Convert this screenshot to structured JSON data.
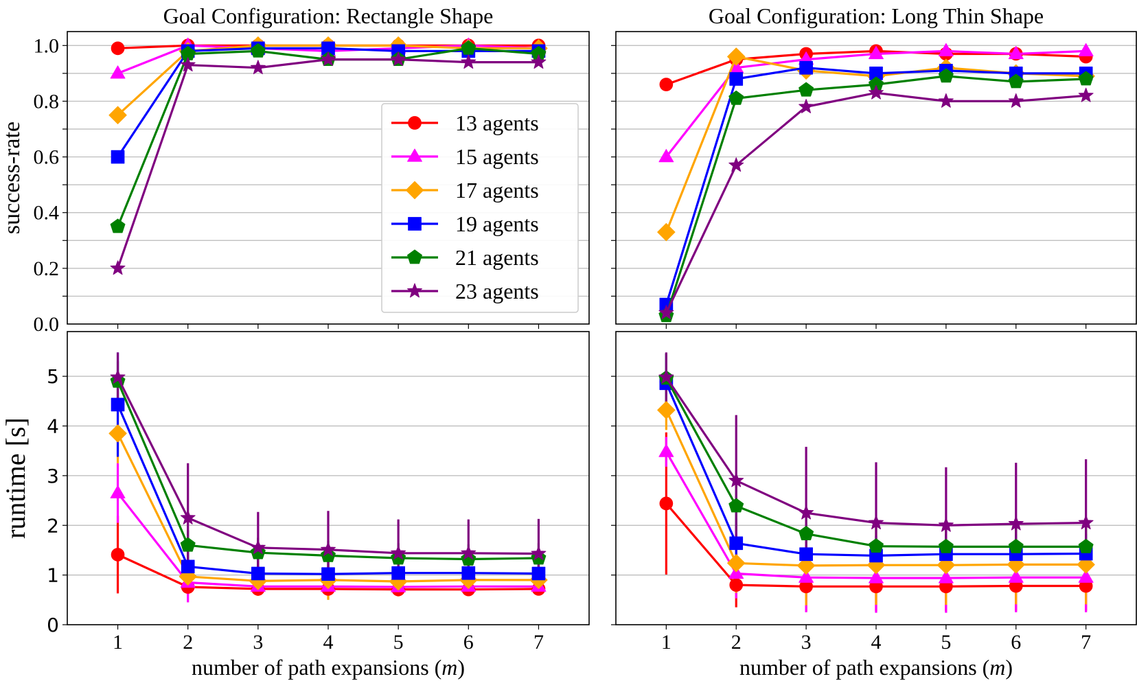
{
  "chart_data": {
    "type": "line",
    "x": [
      1,
      2,
      3,
      4,
      5,
      6,
      7
    ],
    "xticks": [
      "1",
      "2",
      "3",
      "4",
      "5",
      "6",
      "7"
    ],
    "xlabel_text": "number of path expansions (",
    "xlabel_var": "m",
    "xlabel_end": ")",
    "legend_labels": [
      "13 agents",
      "15 agents",
      "17 agents",
      "19 agents",
      "21 agents",
      "23 agents"
    ],
    "series_style": [
      {
        "color": "#ff0000",
        "marker": "circle"
      },
      {
        "color": "#ff00ff",
        "marker": "triangle"
      },
      {
        "color": "#ffa500",
        "marker": "diamond"
      },
      {
        "color": "#0000ff",
        "marker": "square"
      },
      {
        "color": "#008000",
        "marker": "pentagon"
      },
      {
        "color": "#800080",
        "marker": "star"
      }
    ],
    "success": {
      "ylabel": "success-rate",
      "ylim": [
        0,
        1.05
      ],
      "yticks": [
        "0.0",
        "0.2",
        "0.4",
        "0.6",
        "0.8",
        "1.0"
      ],
      "tick_values": [
        0,
        0.2,
        0.4,
        0.6,
        0.8,
        1.0
      ],
      "grid_values": [
        0.1,
        0.2,
        0.3,
        0.4,
        0.5,
        0.6,
        0.7,
        0.8,
        0.9,
        1.0
      ],
      "panels": [
        {
          "title": "Goal Configuration: Rectangle Shape",
          "series": [
            [
              0.99,
              1.0,
              1.0,
              1.0,
              1.0,
              1.0,
              1.0
            ],
            [
              0.9,
              1.0,
              0.99,
              0.98,
              0.99,
              1.0,
              0.99
            ],
            [
              0.75,
              0.98,
              1.0,
              1.0,
              1.0,
              0.99,
              0.99
            ],
            [
              0.6,
              0.98,
              0.99,
              0.99,
              0.98,
              0.98,
              0.98
            ],
            [
              0.35,
              0.97,
              0.98,
              0.95,
              0.95,
              0.99,
              0.97
            ],
            [
              0.2,
              0.93,
              0.92,
              0.95,
              0.95,
              0.94,
              0.94
            ]
          ]
        },
        {
          "title": "Goal Configuration: Long Thin Shape",
          "series": [
            [
              0.86,
              0.95,
              0.97,
              0.98,
              0.97,
              0.97,
              0.96
            ],
            [
              0.6,
              0.92,
              0.95,
              0.97,
              0.98,
              0.97,
              0.98
            ],
            [
              0.33,
              0.96,
              0.91,
              0.89,
              0.92,
              0.9,
              0.89
            ],
            [
              0.07,
              0.88,
              0.92,
              0.9,
              0.91,
              0.9,
              0.9
            ],
            [
              0.03,
              0.81,
              0.84,
              0.86,
              0.89,
              0.87,
              0.88
            ],
            [
              0.04,
              0.57,
              0.78,
              0.83,
              0.8,
              0.8,
              0.82
            ]
          ]
        }
      ]
    },
    "runtime": {
      "ylabel": "runtime [s]",
      "ylim": [
        0,
        5.9
      ],
      "yticks": [
        "0",
        "1",
        "2",
        "3",
        "4",
        "5"
      ],
      "tick_values": [
        0,
        1,
        2,
        3,
        4,
        5
      ],
      "grid_values": [
        1,
        2,
        3,
        4,
        5
      ],
      "panels": [
        {
          "series": [
            [
              1.41,
              0.76,
              0.72,
              0.72,
              0.71,
              0.71,
              0.72
            ],
            [
              2.65,
              0.85,
              0.77,
              0.77,
              0.76,
              0.77,
              0.77
            ],
            [
              3.85,
              0.97,
              0.88,
              0.9,
              0.87,
              0.9,
              0.9
            ],
            [
              4.43,
              1.17,
              1.03,
              1.02,
              1.04,
              1.04,
              1.03
            ],
            [
              4.9,
              1.6,
              1.45,
              1.39,
              1.34,
              1.32,
              1.34
            ],
            [
              4.98,
              2.15,
              1.55,
              1.51,
              1.44,
              1.44,
              1.43
            ]
          ],
          "errors": [
            [
              0.78,
              0.15,
              0.05,
              0.05,
              0.05,
              0.05,
              0.05
            ],
            [
              0.6,
              0.4,
              0.1,
              0.1,
              0.1,
              0.1,
              0.1
            ],
            [
              0.6,
              0.3,
              0.3,
              0.4,
              0.3,
              0.3,
              0.3
            ],
            [
              1.05,
              0.3,
              0.3,
              0.3,
              0.3,
              0.3,
              0.3
            ],
            [
              0.4,
              0.3,
              0.3,
              0.3,
              0.3,
              0.3,
              0.3
            ],
            [
              0.5,
              1.1,
              0.72,
              0.78,
              0.68,
              0.68,
              0.7
            ]
          ]
        },
        {
          "series": [
            [
              2.44,
              0.8,
              0.77,
              0.77,
              0.77,
              0.78,
              0.78
            ],
            [
              3.48,
              1.03,
              0.95,
              0.94,
              0.94,
              0.95,
              0.95
            ],
            [
              4.32,
              1.24,
              1.19,
              1.2,
              1.2,
              1.21,
              1.21
            ],
            [
              4.86,
              1.64,
              1.42,
              1.39,
              1.42,
              1.42,
              1.43
            ],
            [
              4.96,
              2.39,
              1.83,
              1.58,
              1.57,
              1.57,
              1.57
            ],
            [
              4.98,
              2.9,
              2.25,
              2.05,
              2.0,
              2.03,
              2.05
            ]
          ],
          "errors": [
            [
              1.43,
              0.45,
              0.5,
              0.5,
              0.5,
              0.5,
              0.5
            ],
            [
              0.3,
              0.5,
              0.7,
              0.7,
              0.7,
              0.7,
              0.7
            ],
            [
              0.4,
              0.6,
              0.8,
              0.8,
              0.8,
              0.8,
              0.8
            ],
            [
              0.6,
              0.5,
              0.4,
              0.4,
              0.4,
              0.4,
              0.4
            ],
            [
              0.5,
              0.5,
              0.5,
              0.5,
              0.5,
              0.5,
              0.5
            ],
            [
              0.5,
              1.32,
              1.33,
              1.22,
              1.17,
              1.23,
              1.28
            ]
          ]
        }
      ]
    }
  }
}
